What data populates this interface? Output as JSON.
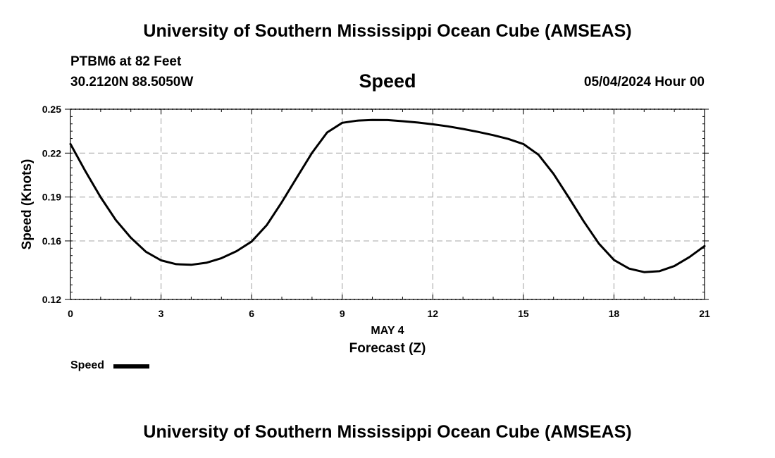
{
  "header": {
    "title": "University of Southern Mississippi Ocean Cube (AMSEAS)",
    "station": "PTBM6 at 82 Feet",
    "coords": "30.2120N  88.5050W",
    "variable": "Speed",
    "datetime": "05/04/2024 Hour 00"
  },
  "footer": {
    "title": "University of Southern Mississippi Ocean Cube (AMSEAS)"
  },
  "legend": {
    "label": "Speed",
    "color": "#000000"
  },
  "chart_data": {
    "type": "line",
    "title": "Speed",
    "xlabel": "Forecast (Z)",
    "xlabel_date": "MAY 4",
    "ylabel": "Speed (Knots)",
    "xlim": [
      0,
      21
    ],
    "ylim": [
      0.12,
      0.25
    ],
    "xticks": [
      0,
      3,
      6,
      9,
      12,
      15,
      18,
      21
    ],
    "yticks": [
      0.12,
      0.16,
      0.19,
      0.22,
      0.25
    ],
    "ytick_labels": [
      "0.12",
      "0.16",
      "0.19",
      "0.22",
      "0.25"
    ],
    "grid": true,
    "series": [
      {
        "name": "Speed",
        "color": "#000000",
        "x": [
          0,
          0.5,
          1,
          1.5,
          2,
          2.5,
          3,
          3.5,
          4,
          4.5,
          5,
          5.5,
          6,
          6.5,
          7,
          7.5,
          8,
          8.5,
          9,
          9.5,
          10,
          10.5,
          11,
          11.5,
          12,
          12.5,
          13,
          13.5,
          14,
          14.5,
          15,
          15.5,
          16,
          16.5,
          17,
          17.5,
          18,
          18.5,
          19,
          19.5,
          20,
          20.5,
          21
        ],
        "values": [
          0.2262,
          0.2075,
          0.1898,
          0.1743,
          0.1622,
          0.1526,
          0.1467,
          0.1441,
          0.1437,
          0.1451,
          0.1482,
          0.153,
          0.1596,
          0.1708,
          0.1865,
          0.2034,
          0.2202,
          0.2341,
          0.2407,
          0.2422,
          0.2427,
          0.2426,
          0.2418,
          0.2409,
          0.2397,
          0.2383,
          0.2365,
          0.2345,
          0.2323,
          0.2297,
          0.2262,
          0.2189,
          0.2058,
          0.1898,
          0.1733,
          0.1582,
          0.147,
          0.1411,
          0.1387,
          0.1393,
          0.1428,
          0.149,
          0.1565
        ]
      }
    ]
  }
}
